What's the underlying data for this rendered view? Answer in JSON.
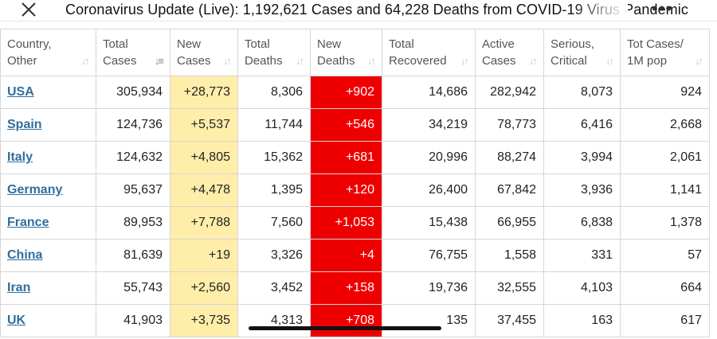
{
  "header": {
    "title": "Coronavirus Update (Live): 1,192,621 Cases and 64,228 Deaths from COVID-19 Virus Pandemic",
    "more_label": "•••"
  },
  "colors": {
    "new_cases_bg": "#ffeeaa",
    "new_deaths_bg": "#ee0000",
    "link": "#2f6e9f"
  },
  "table": {
    "columns": [
      {
        "line1": "Country,",
        "line2": "Other"
      },
      {
        "line1": "Total",
        "line2": "Cases"
      },
      {
        "line1": "New",
        "line2": "Cases"
      },
      {
        "line1": "Total",
        "line2": "Deaths"
      },
      {
        "line1": "New",
        "line2": "Deaths"
      },
      {
        "line1": "Total",
        "line2": "Recovered"
      },
      {
        "line1": "Active",
        "line2": "Cases"
      },
      {
        "line1": "Serious,",
        "line2": "Critical"
      },
      {
        "line1": "Tot Cases/",
        "line2": "1M pop"
      }
    ],
    "rows": [
      {
        "country": "USA",
        "total_cases": "305,934",
        "new_cases": "+28,773",
        "total_deaths": "8,306",
        "new_deaths": "+902",
        "recovered": "14,686",
        "active": "282,942",
        "serious": "8,073",
        "per_million": "924"
      },
      {
        "country": "Spain",
        "total_cases": "124,736",
        "new_cases": "+5,537",
        "total_deaths": "11,744",
        "new_deaths": "+546",
        "recovered": "34,219",
        "active": "78,773",
        "serious": "6,416",
        "per_million": "2,668"
      },
      {
        "country": "Italy",
        "total_cases": "124,632",
        "new_cases": "+4,805",
        "total_deaths": "15,362",
        "new_deaths": "+681",
        "recovered": "20,996",
        "active": "88,274",
        "serious": "3,994",
        "per_million": "2,061"
      },
      {
        "country": "Germany",
        "total_cases": "95,637",
        "new_cases": "+4,478",
        "total_deaths": "1,395",
        "new_deaths": "+120",
        "recovered": "26,400",
        "active": "67,842",
        "serious": "3,936",
        "per_million": "1,141"
      },
      {
        "country": "France",
        "total_cases": "89,953",
        "new_cases": "+7,788",
        "total_deaths": "7,560",
        "new_deaths": "+1,053",
        "recovered": "15,438",
        "active": "66,955",
        "serious": "6,838",
        "per_million": "1,378"
      },
      {
        "country": "China",
        "total_cases": "81,639",
        "new_cases": "+19",
        "total_deaths": "3,326",
        "new_deaths": "+4",
        "recovered": "76,755",
        "active": "1,558",
        "serious": "331",
        "per_million": "57"
      },
      {
        "country": "Iran",
        "total_cases": "55,743",
        "new_cases": "+2,560",
        "total_deaths": "3,452",
        "new_deaths": "+158",
        "recovered": "19,736",
        "active": "32,555",
        "serious": "4,103",
        "per_million": "664"
      },
      {
        "country": "UK",
        "total_cases": "41,903",
        "new_cases": "+3,735",
        "total_deaths": "4,313",
        "new_deaths": "+708",
        "recovered": "135",
        "active": "37,455",
        "serious": "163",
        "per_million": "617"
      }
    ]
  }
}
